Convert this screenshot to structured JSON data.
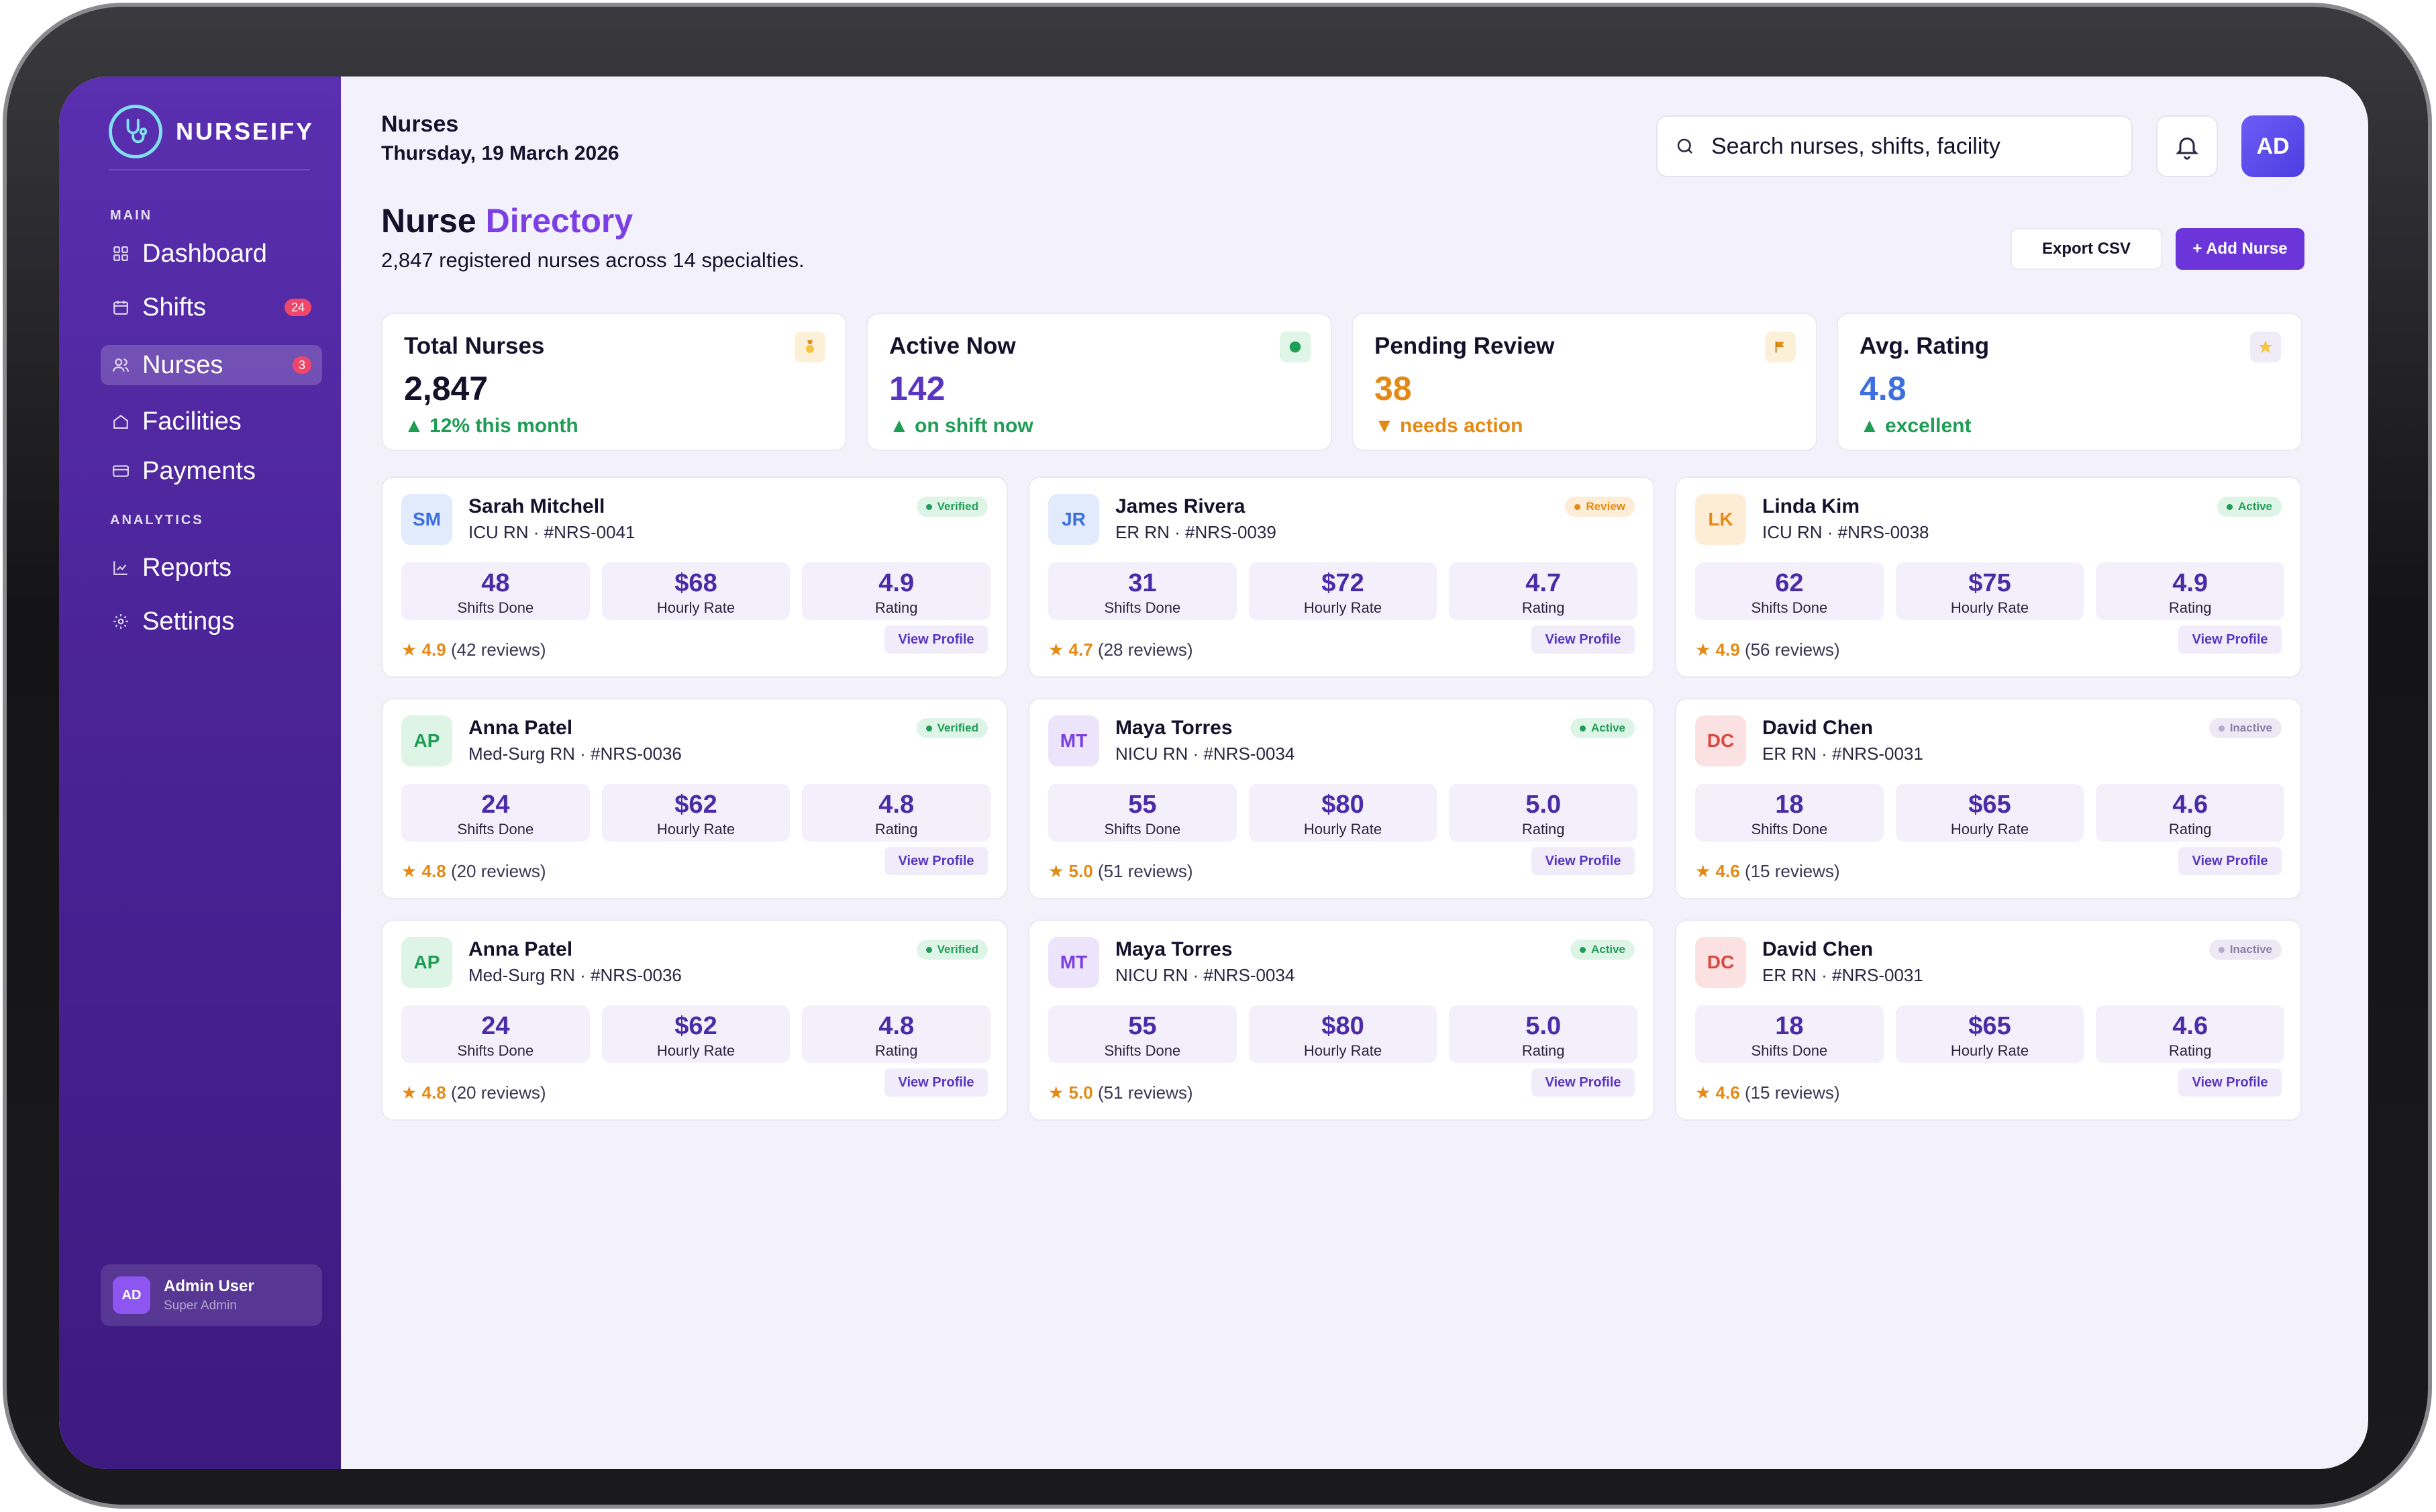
{
  "app": {
    "name": "NURSEIFY"
  },
  "sidebar": {
    "sections": {
      "main": "MAIN",
      "analytics": "ANALYTICS"
    },
    "items": [
      {
        "label": "Dashboard",
        "icon": "grid-icon"
      },
      {
        "label": "Shifts",
        "icon": "calendar-icon",
        "badge": "24"
      },
      {
        "label": "Nurses",
        "icon": "users-icon",
        "badge": "3",
        "active": true
      },
      {
        "label": "Facilities",
        "icon": "home-icon"
      },
      {
        "label": "Payments",
        "icon": "card-icon"
      },
      {
        "label": "Reports",
        "icon": "chart-icon"
      },
      {
        "label": "Settings",
        "icon": "gear-icon"
      }
    ],
    "admin": {
      "initials": "AD",
      "name": "Admin User",
      "role": "Super Admin"
    }
  },
  "header": {
    "crumb": "Nurses",
    "date": "Thursday, 19 March 2026",
    "search_placeholder": "Search nurses, shifts, facility",
    "avatar": "AD"
  },
  "directory": {
    "title_main": "Nurse",
    "title_accent": "Directory",
    "subtitle": "2,847 registered nurses across 14 specialties.",
    "export_label": "Export CSV",
    "add_label": "+ Add Nurse"
  },
  "stats": [
    {
      "label": "Total Nurses",
      "value": "2,847",
      "note": "12% this month",
      "trend": "up",
      "icon": "medal-icon"
    },
    {
      "label": "Active Now",
      "value": "142",
      "note": "on shift now",
      "trend": "up",
      "icon": "status-dot-icon"
    },
    {
      "label": "Pending Review",
      "value": "38",
      "note": "needs action",
      "trend": "down",
      "icon": "flag-icon"
    },
    {
      "label": "Avg. Rating",
      "value": "4.8",
      "note": "excellent",
      "trend": "up",
      "icon": "star-icon"
    }
  ],
  "stat_labels": {
    "shifts": "Shifts Done",
    "rate": "Hourly Rate",
    "rating": "Rating"
  },
  "view_profile_label": "View Profile",
  "colors": {
    "accent": "#7b3fe4",
    "primary": "#6b35d9",
    "positive": "#1f9d55",
    "warning": "#e48a14",
    "danger": "#f0466a"
  },
  "nurses": [
    {
      "initials": "SM",
      "name": "Sarah Mitchell",
      "role": "ICU RN · #NRS-0041",
      "status": "Verified",
      "shifts": "48",
      "rate": "$68",
      "rating": "4.9",
      "reviews": "(42 reviews)"
    },
    {
      "initials": "JR",
      "name": "James Rivera",
      "role": "ER RN · #NRS-0039",
      "status": "Review",
      "shifts": "31",
      "rate": "$72",
      "rating": "4.7",
      "reviews": "(28 reviews)"
    },
    {
      "initials": "LK",
      "name": "Linda Kim",
      "role": "ICU RN · #NRS-0038",
      "status": "Active",
      "shifts": "62",
      "rate": "$75",
      "rating": "4.9",
      "reviews": "(56 reviews)"
    },
    {
      "initials": "AP",
      "name": "Anna Patel",
      "role": "Med-Surg RN · #NRS-0036",
      "status": "Verified",
      "shifts": "24",
      "rate": "$62",
      "rating": "4.8",
      "reviews": "(20 reviews)"
    },
    {
      "initials": "MT",
      "name": "Maya Torres",
      "role": "NICU RN · #NRS-0034",
      "status": "Active",
      "shifts": "55",
      "rate": "$80",
      "rating": "5.0",
      "reviews": "(51 reviews)"
    },
    {
      "initials": "DC",
      "name": "David Chen",
      "role": "ER RN · #NRS-0031",
      "status": "Inactive",
      "shifts": "18",
      "rate": "$65",
      "rating": "4.6",
      "reviews": "(15 reviews)"
    },
    {
      "initials": "AP",
      "name": "Anna Patel",
      "role": "Med-Surg RN · #NRS-0036",
      "status": "Verified",
      "shifts": "24",
      "rate": "$62",
      "rating": "4.8",
      "reviews": "(20 reviews)"
    },
    {
      "initials": "MT",
      "name": "Maya Torres",
      "role": "NICU RN · #NRS-0034",
      "status": "Active",
      "shifts": "55",
      "rate": "$80",
      "rating": "5.0",
      "reviews": "(51 reviews)"
    },
    {
      "initials": "DC",
      "name": "David Chen",
      "role": "ER RN · #NRS-0031",
      "status": "Inactive",
      "shifts": "18",
      "rate": "$65",
      "rating": "4.6",
      "reviews": "(15 reviews)"
    }
  ]
}
